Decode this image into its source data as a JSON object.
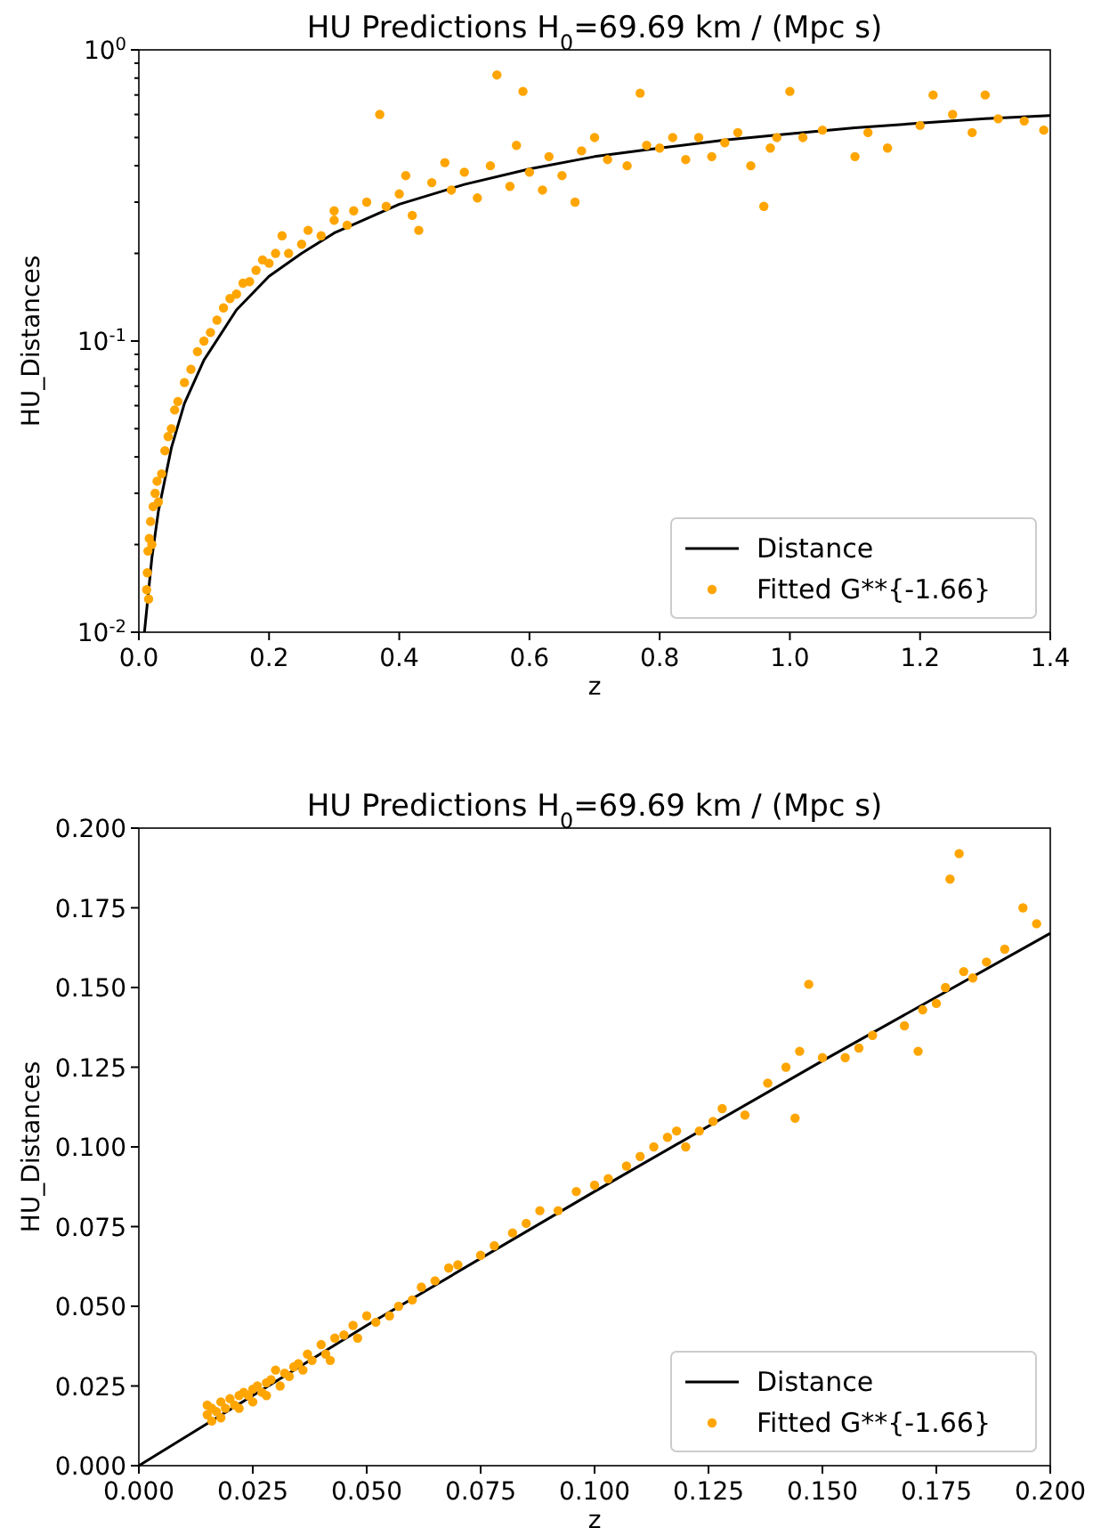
{
  "chart_data": [
    {
      "type": "scatter",
      "title": "HU Predictions H$_{0}$=69.69 km / (Mpc s)",
      "xlabel": "z",
      "ylabel": "HU_Distances",
      "log": "y",
      "xlim": [
        0,
        1.4
      ],
      "xticks": [
        {
          "value": 0,
          "label": "0.0"
        },
        0.2,
        0.4,
        0.6,
        0.8,
        {
          "value": 1,
          "label": "1.0"
        },
        1.2,
        1.4
      ],
      "ylim": [
        0.01,
        1
      ],
      "yticks": [
        {
          "value": 0.01,
          "label": "10$^{-2}$"
        },
        {
          "value": 0.02,
          "label": null
        },
        {
          "value": 0.03,
          "label": null
        },
        {
          "value": 0.04,
          "label": null
        },
        {
          "value": 0.05,
          "label": null
        },
        {
          "value": 0.06,
          "label": null
        },
        {
          "value": 0.07,
          "label": null
        },
        {
          "value": 0.08,
          "label": null
        },
        {
          "value": 0.09,
          "label": null
        },
        {
          "value": 0.1,
          "label": "10$^{-1}$"
        },
        {
          "value": 0.2,
          "label": null
        },
        {
          "value": 0.3,
          "label": null
        },
        {
          "value": 0.4,
          "label": null
        },
        {
          "value": 0.5,
          "label": null
        },
        {
          "value": 0.6,
          "label": null
        },
        {
          "value": 0.7,
          "label": null
        },
        {
          "value": 0.8,
          "label": null
        },
        {
          "value": 0.9,
          "label": null
        },
        {
          "value": 1,
          "label": "10$^{0}$"
        }
      ],
      "grid": false,
      "legend": "bottom right",
      "marker": "circle",
      "series": [
        {
          "name": "Distance",
          "type": "line",
          "color": "#000000",
          "marker": "none",
          "line_style": "solid",
          "x": [
            0.0086,
            0.02,
            0.03,
            0.05,
            0.07,
            0.1,
            0.15,
            0.2,
            0.25,
            0.3,
            0.4,
            0.5,
            0.6,
            0.7,
            0.8,
            0.9,
            1.0,
            1.1,
            1.2,
            1.3,
            1.4
          ],
          "values": [
            0.01,
            0.018,
            0.026,
            0.043,
            0.061,
            0.086,
            0.128,
            0.167,
            0.2,
            0.235,
            0.295,
            0.345,
            0.39,
            0.43,
            0.46,
            0.49,
            0.515,
            0.54,
            0.56,
            0.58,
            0.595
          ]
        },
        {
          "name": "Fitted G**{-1.66}",
          "color": "#ffa500",
          "x": [
            0.012,
            0.013,
            0.014,
            0.015,
            0.016,
            0.018,
            0.02,
            0.022,
            0.025,
            0.028,
            0.03,
            0.035,
            0.04,
            0.045,
            0.05,
            0.055,
            0.06,
            0.07,
            0.08,
            0.09,
            0.1,
            0.11,
            0.12,
            0.13,
            0.14,
            0.15,
            0.16,
            0.17,
            0.18,
            0.19,
            0.2,
            0.21,
            0.22,
            0.23,
            0.25,
            0.26,
            0.28,
            0.3,
            0.3,
            0.32,
            0.33,
            0.35,
            0.37,
            0.38,
            0.4,
            0.41,
            0.42,
            0.43,
            0.45,
            0.47,
            0.48,
            0.5,
            0.52,
            0.54,
            0.55,
            0.57,
            0.58,
            0.59,
            0.6,
            0.62,
            0.63,
            0.65,
            0.67,
            0.68,
            0.7,
            0.72,
            0.75,
            0.77,
            0.78,
            0.8,
            0.82,
            0.84,
            0.86,
            0.88,
            0.9,
            0.92,
            0.94,
            0.96,
            0.97,
            0.98,
            1.0,
            1.02,
            1.05,
            1.1,
            1.12,
            1.15,
            1.2,
            1.22,
            1.25,
            1.28,
            1.3,
            1.32,
            1.36,
            1.39
          ],
          "values": [
            0.014,
            0.016,
            0.019,
            0.013,
            0.021,
            0.024,
            0.02,
            0.027,
            0.03,
            0.033,
            0.028,
            0.035,
            0.042,
            0.047,
            0.05,
            0.058,
            0.062,
            0.072,
            0.08,
            0.092,
            0.1,
            0.107,
            0.118,
            0.13,
            0.14,
            0.145,
            0.158,
            0.16,
            0.175,
            0.19,
            0.185,
            0.2,
            0.23,
            0.2,
            0.215,
            0.24,
            0.23,
            0.26,
            0.28,
            0.25,
            0.28,
            0.3,
            0.6,
            0.29,
            0.32,
            0.37,
            0.27,
            0.24,
            0.35,
            0.41,
            0.33,
            0.38,
            0.31,
            0.4,
            0.82,
            0.34,
            0.47,
            0.72,
            0.38,
            0.33,
            0.43,
            0.37,
            0.3,
            0.45,
            0.5,
            0.42,
            0.4,
            0.71,
            0.47,
            0.46,
            0.5,
            0.42,
            0.5,
            0.43,
            0.48,
            0.52,
            0.4,
            0.29,
            0.46,
            0.5,
            0.72,
            0.5,
            0.53,
            0.43,
            0.52,
            0.46,
            0.55,
            0.7,
            0.6,
            0.52,
            0.7,
            0.58,
            0.57,
            0.53
          ]
        }
      ]
    },
    {
      "type": "scatter",
      "title": "HU Predictions H$_{0}$=69.69 km / (Mpc s)",
      "xlabel": "z",
      "ylabel": "HU_Distances",
      "xlim": [
        0,
        0.2
      ],
      "xticks": [
        {
          "value": 0,
          "label": "0.000"
        },
        0.025,
        {
          "value": 0.05,
          "label": "0.050"
        },
        0.075,
        {
          "value": 0.1,
          "label": "0.100"
        },
        0.125,
        {
          "value": 0.15,
          "label": "0.150"
        },
        0.175,
        {
          "value": 0.2,
          "label": "0.200"
        }
      ],
      "ylim": [
        0,
        0.2
      ],
      "yticks": [
        {
          "value": 0,
          "label": "0.000"
        },
        0.025,
        {
          "value": 0.05,
          "label": "0.050"
        },
        0.075,
        {
          "value": 0.1,
          "label": "0.100"
        },
        0.125,
        {
          "value": 0.15,
          "label": "0.150"
        },
        0.175,
        {
          "value": 0.2,
          "label": "0.200"
        }
      ],
      "grid": false,
      "legend": "bottom right",
      "marker": "circle",
      "series": [
        {
          "name": "Distance",
          "type": "line",
          "color": "#000000",
          "marker": "none",
          "line_style": "solid",
          "x": [
            0,
            0.05,
            0.1,
            0.15,
            0.2
          ],
          "values": [
            0,
            0.044,
            0.086,
            0.127,
            0.167
          ]
        },
        {
          "name": "Fitted G**{-1.66}",
          "color": "#ffa500",
          "x": [
            0.015,
            0.015,
            0.016,
            0.016,
            0.017,
            0.018,
            0.018,
            0.019,
            0.02,
            0.021,
            0.022,
            0.022,
            0.023,
            0.024,
            0.025,
            0.025,
            0.026,
            0.027,
            0.028,
            0.028,
            0.029,
            0.03,
            0.031,
            0.032,
            0.033,
            0.034,
            0.035,
            0.036,
            0.037,
            0.038,
            0.04,
            0.041,
            0.042,
            0.043,
            0.045,
            0.047,
            0.048,
            0.05,
            0.052,
            0.055,
            0.057,
            0.06,
            0.062,
            0.065,
            0.068,
            0.07,
            0.075,
            0.078,
            0.082,
            0.085,
            0.088,
            0.092,
            0.096,
            0.1,
            0.103,
            0.107,
            0.11,
            0.113,
            0.116,
            0.118,
            0.12,
            0.123,
            0.126,
            0.128,
            0.133,
            0.138,
            0.142,
            0.144,
            0.145,
            0.147,
            0.15,
            0.155,
            0.158,
            0.161,
            0.168,
            0.171,
            0.172,
            0.175,
            0.177,
            0.178,
            0.18,
            0.181,
            0.183,
            0.186,
            0.19,
            0.194,
            0.197
          ],
          "values": [
            0.016,
            0.019,
            0.014,
            0.018,
            0.017,
            0.02,
            0.015,
            0.018,
            0.021,
            0.019,
            0.022,
            0.018,
            0.023,
            0.022,
            0.024,
            0.02,
            0.025,
            0.023,
            0.026,
            0.022,
            0.027,
            0.03,
            0.025,
            0.029,
            0.028,
            0.031,
            0.032,
            0.03,
            0.035,
            0.033,
            0.038,
            0.035,
            0.033,
            0.04,
            0.041,
            0.044,
            0.04,
            0.047,
            0.045,
            0.047,
            0.05,
            0.052,
            0.056,
            0.058,
            0.062,
            0.063,
            0.066,
            0.069,
            0.073,
            0.076,
            0.08,
            0.08,
            0.086,
            0.088,
            0.09,
            0.094,
            0.097,
            0.1,
            0.103,
            0.105,
            0.1,
            0.105,
            0.108,
            0.112,
            0.11,
            0.12,
            0.125,
            0.109,
            0.13,
            0.151,
            0.128,
            0.128,
            0.131,
            0.135,
            0.138,
            0.13,
            0.143,
            0.145,
            0.15,
            0.184,
            0.192,
            0.155,
            0.153,
            0.158,
            0.162,
            0.175,
            0.17
          ]
        }
      ]
    }
  ]
}
